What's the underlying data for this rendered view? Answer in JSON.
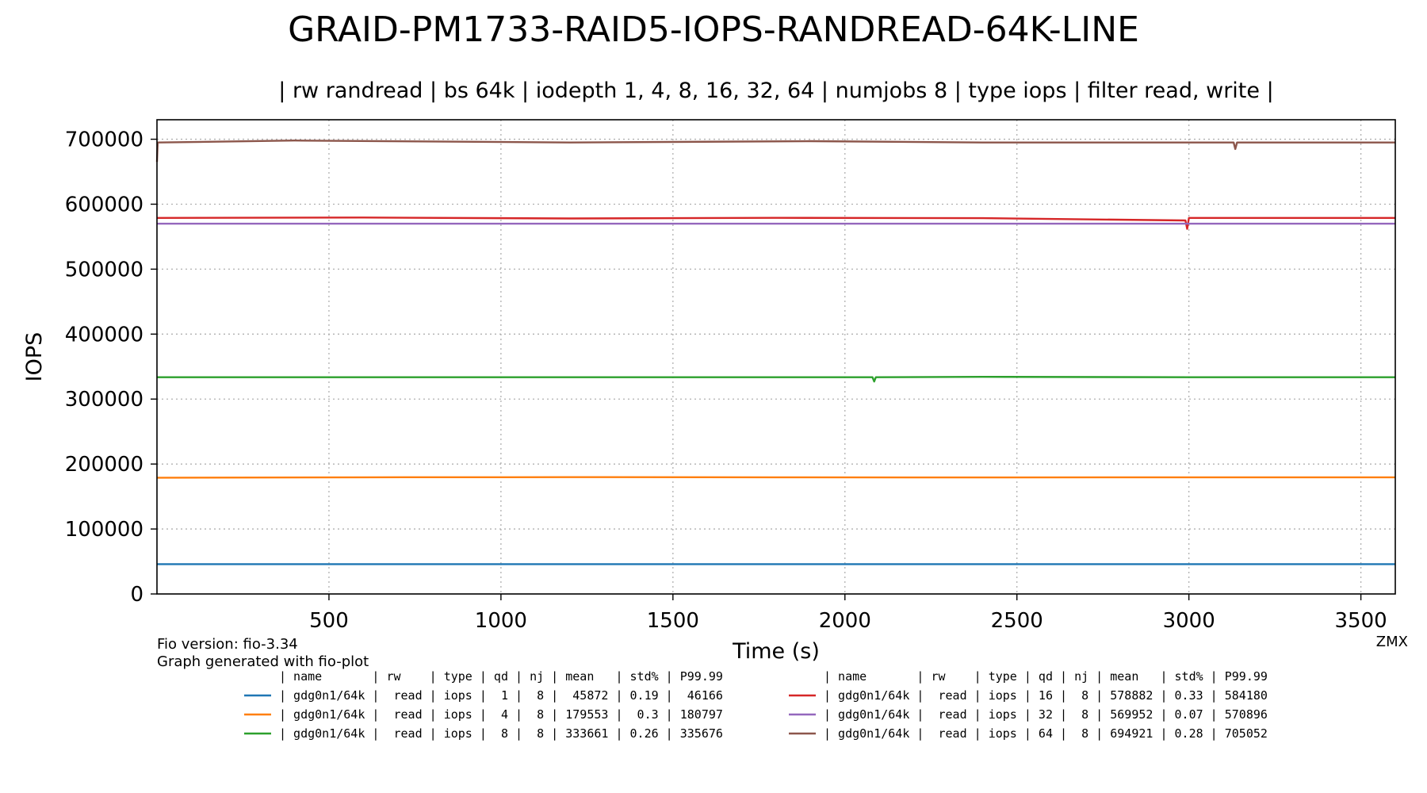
{
  "chart_data": {
    "type": "line",
    "title": "GRAID-PM1733-RAID5-IOPS-RANDREAD-64K-LINE",
    "subtitle": "| rw randread | bs 64k | iodepth 1, 4, 8, 16, 32, 64 | numjobs 8 | type iops | filter read, write |",
    "xlabel": "Time (s)",
    "ylabel": "IOPS",
    "xlim": [
      0,
      3600
    ],
    "ylim": [
      0,
      730000
    ],
    "x_ticks": [
      500,
      1000,
      1500,
      2000,
      2500,
      3000,
      3500
    ],
    "y_ticks": [
      0,
      100000,
      200000,
      300000,
      400000,
      500000,
      600000,
      700000
    ],
    "grid": true,
    "series": [
      {
        "name": "gdg0n1/64k qd 1",
        "color": "#1f77b4",
        "x": [
          0,
          600,
          1200,
          1800,
          2400,
          3000,
          3600
        ],
        "values": [
          45872,
          45872,
          45872,
          45872,
          45872,
          45872,
          45872
        ]
      },
      {
        "name": "gdg0n1/64k qd 4",
        "color": "#ff7f0e",
        "x": [
          0,
          600,
          1200,
          1800,
          2400,
          3000,
          3600
        ],
        "values": [
          179000,
          179553,
          179800,
          179553,
          179300,
          179553,
          179553
        ]
      },
      {
        "name": "gdg0n1/64k qd 8",
        "color": "#2ca02c",
        "x": [
          0,
          600,
          1200,
          1800,
          2080,
          2085,
          2090,
          2400,
          3000,
          3600
        ],
        "values": [
          333661,
          333661,
          333661,
          333661,
          333661,
          327000,
          333661,
          334200,
          333661,
          333661
        ]
      },
      {
        "name": "gdg0n1/64k qd 16",
        "color": "#d62728",
        "x": [
          0,
          600,
          1200,
          1800,
          2400,
          2990,
          2995,
          3000,
          3600
        ],
        "values": [
          578882,
          579500,
          578000,
          579000,
          578500,
          575000,
          562000,
          578882,
          578882
        ]
      },
      {
        "name": "gdg0n1/64k qd 32",
        "color": "#9467bd",
        "x": [
          0,
          600,
          1200,
          1800,
          2400,
          3000,
          3600
        ],
        "values": [
          569952,
          569952,
          569952,
          569952,
          569952,
          569952,
          569952
        ]
      },
      {
        "name": "gdg0n1/64k qd 64",
        "color": "#8c564b",
        "x": [
          0,
          2,
          400,
          1200,
          1900,
          2400,
          3130,
          3135,
          3140,
          3600
        ],
        "values": [
          665000,
          694921,
          698000,
          694921,
          697000,
          694921,
          694921,
          685000,
          694921,
          694921
        ]
      }
    ]
  },
  "notes": {
    "fio_version": "Fio version: fio-3.34",
    "generated": "Graph generated with fio-plot",
    "author": "ZMX"
  },
  "legend": {
    "header": "| name       | rw    | type | qd | nj | mean   | std% | P99.99",
    "rows": [
      {
        "color": "#1f77b4",
        "text": "| gdg0n1/64k |  read | iops |  1 |  8 |  45872 | 0.19 |  46166"
      },
      {
        "color": "#ff7f0e",
        "text": "| gdg0n1/64k |  read | iops |  4 |  8 | 179553 |  0.3 | 180797"
      },
      {
        "color": "#2ca02c",
        "text": "| gdg0n1/64k |  read | iops |  8 |  8 | 333661 | 0.26 | 335676"
      },
      {
        "color": "#d62728",
        "text": "| gdg0n1/64k |  read | iops | 16 |  8 | 578882 | 0.33 | 584180"
      },
      {
        "color": "#9467bd",
        "text": "| gdg0n1/64k |  read | iops | 32 |  8 | 569952 | 0.07 | 570896"
      },
      {
        "color": "#8c564b",
        "text": "| gdg0n1/64k |  read | iops | 64 |  8 | 694921 | 0.28 | 705052"
      }
    ]
  }
}
